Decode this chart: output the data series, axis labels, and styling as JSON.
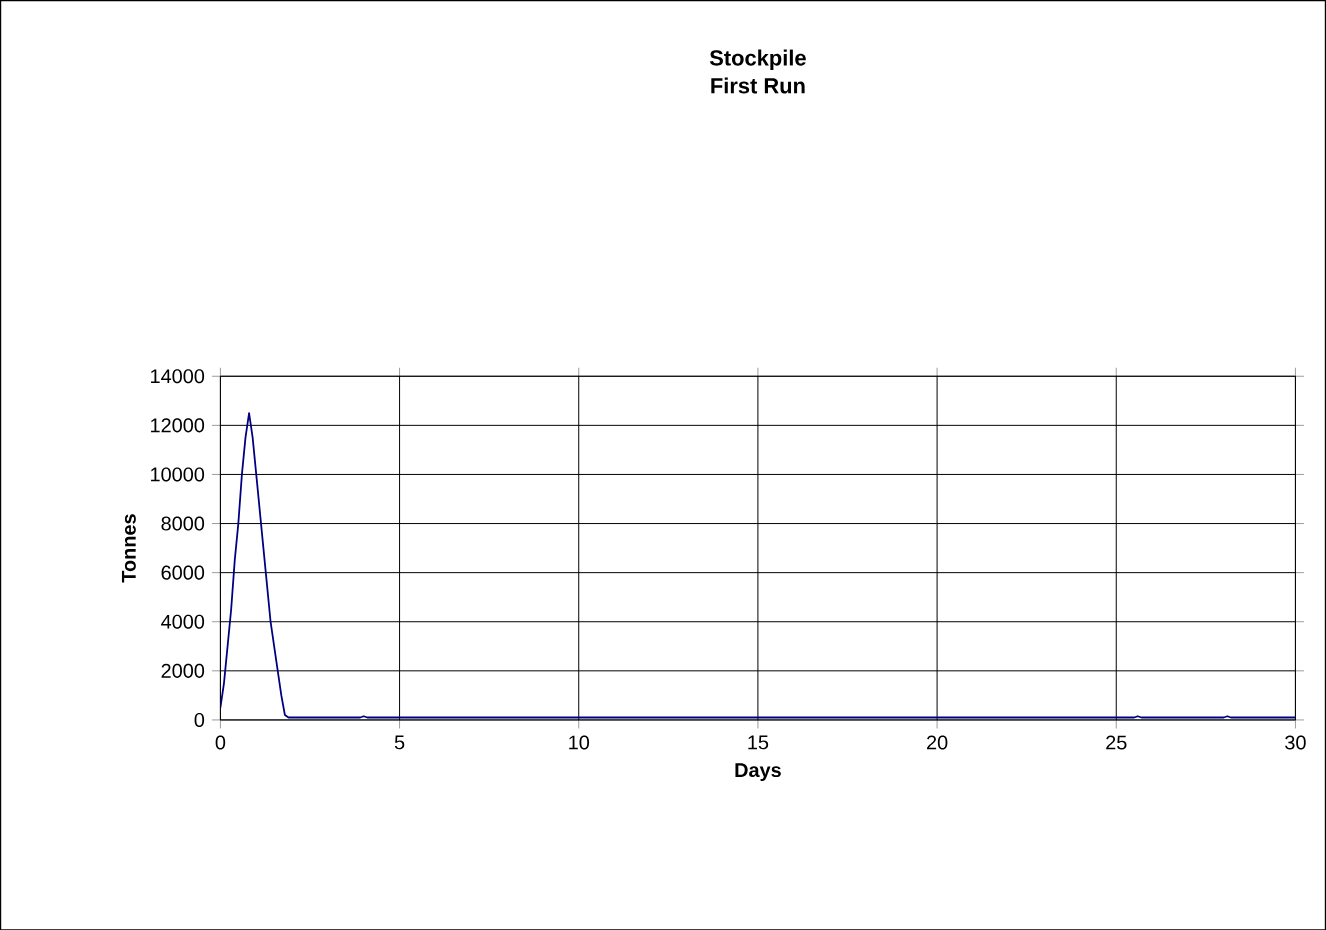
{
  "chart_data": {
    "type": "line",
    "title": "Stockpile\nFirst Run",
    "xlabel": "Days",
    "ylabel": "Tonnes",
    "xlim": [
      0,
      30
    ],
    "xticks": [
      0,
      5,
      10,
      15,
      20,
      25,
      30
    ],
    "ylim": [
      0,
      14000
    ],
    "yticks": [
      0,
      2000,
      4000,
      6000,
      8000,
      10000,
      12000,
      14000
    ],
    "grid": true,
    "marker": "none",
    "line_style": "solid",
    "series": [
      {
        "color": "#000080",
        "x": [
          0,
          0.1,
          0.2,
          0.3,
          0.4,
          0.5,
          0.6,
          0.7,
          0.8,
          0.9,
          1.0,
          1.1,
          1.2,
          1.3,
          1.4,
          1.5,
          1.6,
          1.7,
          1.8,
          1.9,
          3.9,
          4,
          4.1,
          25.5,
          25.6,
          25.7,
          28,
          28.1,
          28.2,
          30
        ],
        "values": [
          500,
          1500,
          3000,
          4500,
          6500,
          8000,
          10000,
          11500,
          12500,
          11500,
          10000,
          8500,
          7000,
          5500,
          4000,
          3000,
          2000,
          1000,
          200,
          100,
          100,
          150,
          100,
          100,
          150,
          100,
          100,
          150,
          100,
          100
        ]
      }
    ]
  }
}
